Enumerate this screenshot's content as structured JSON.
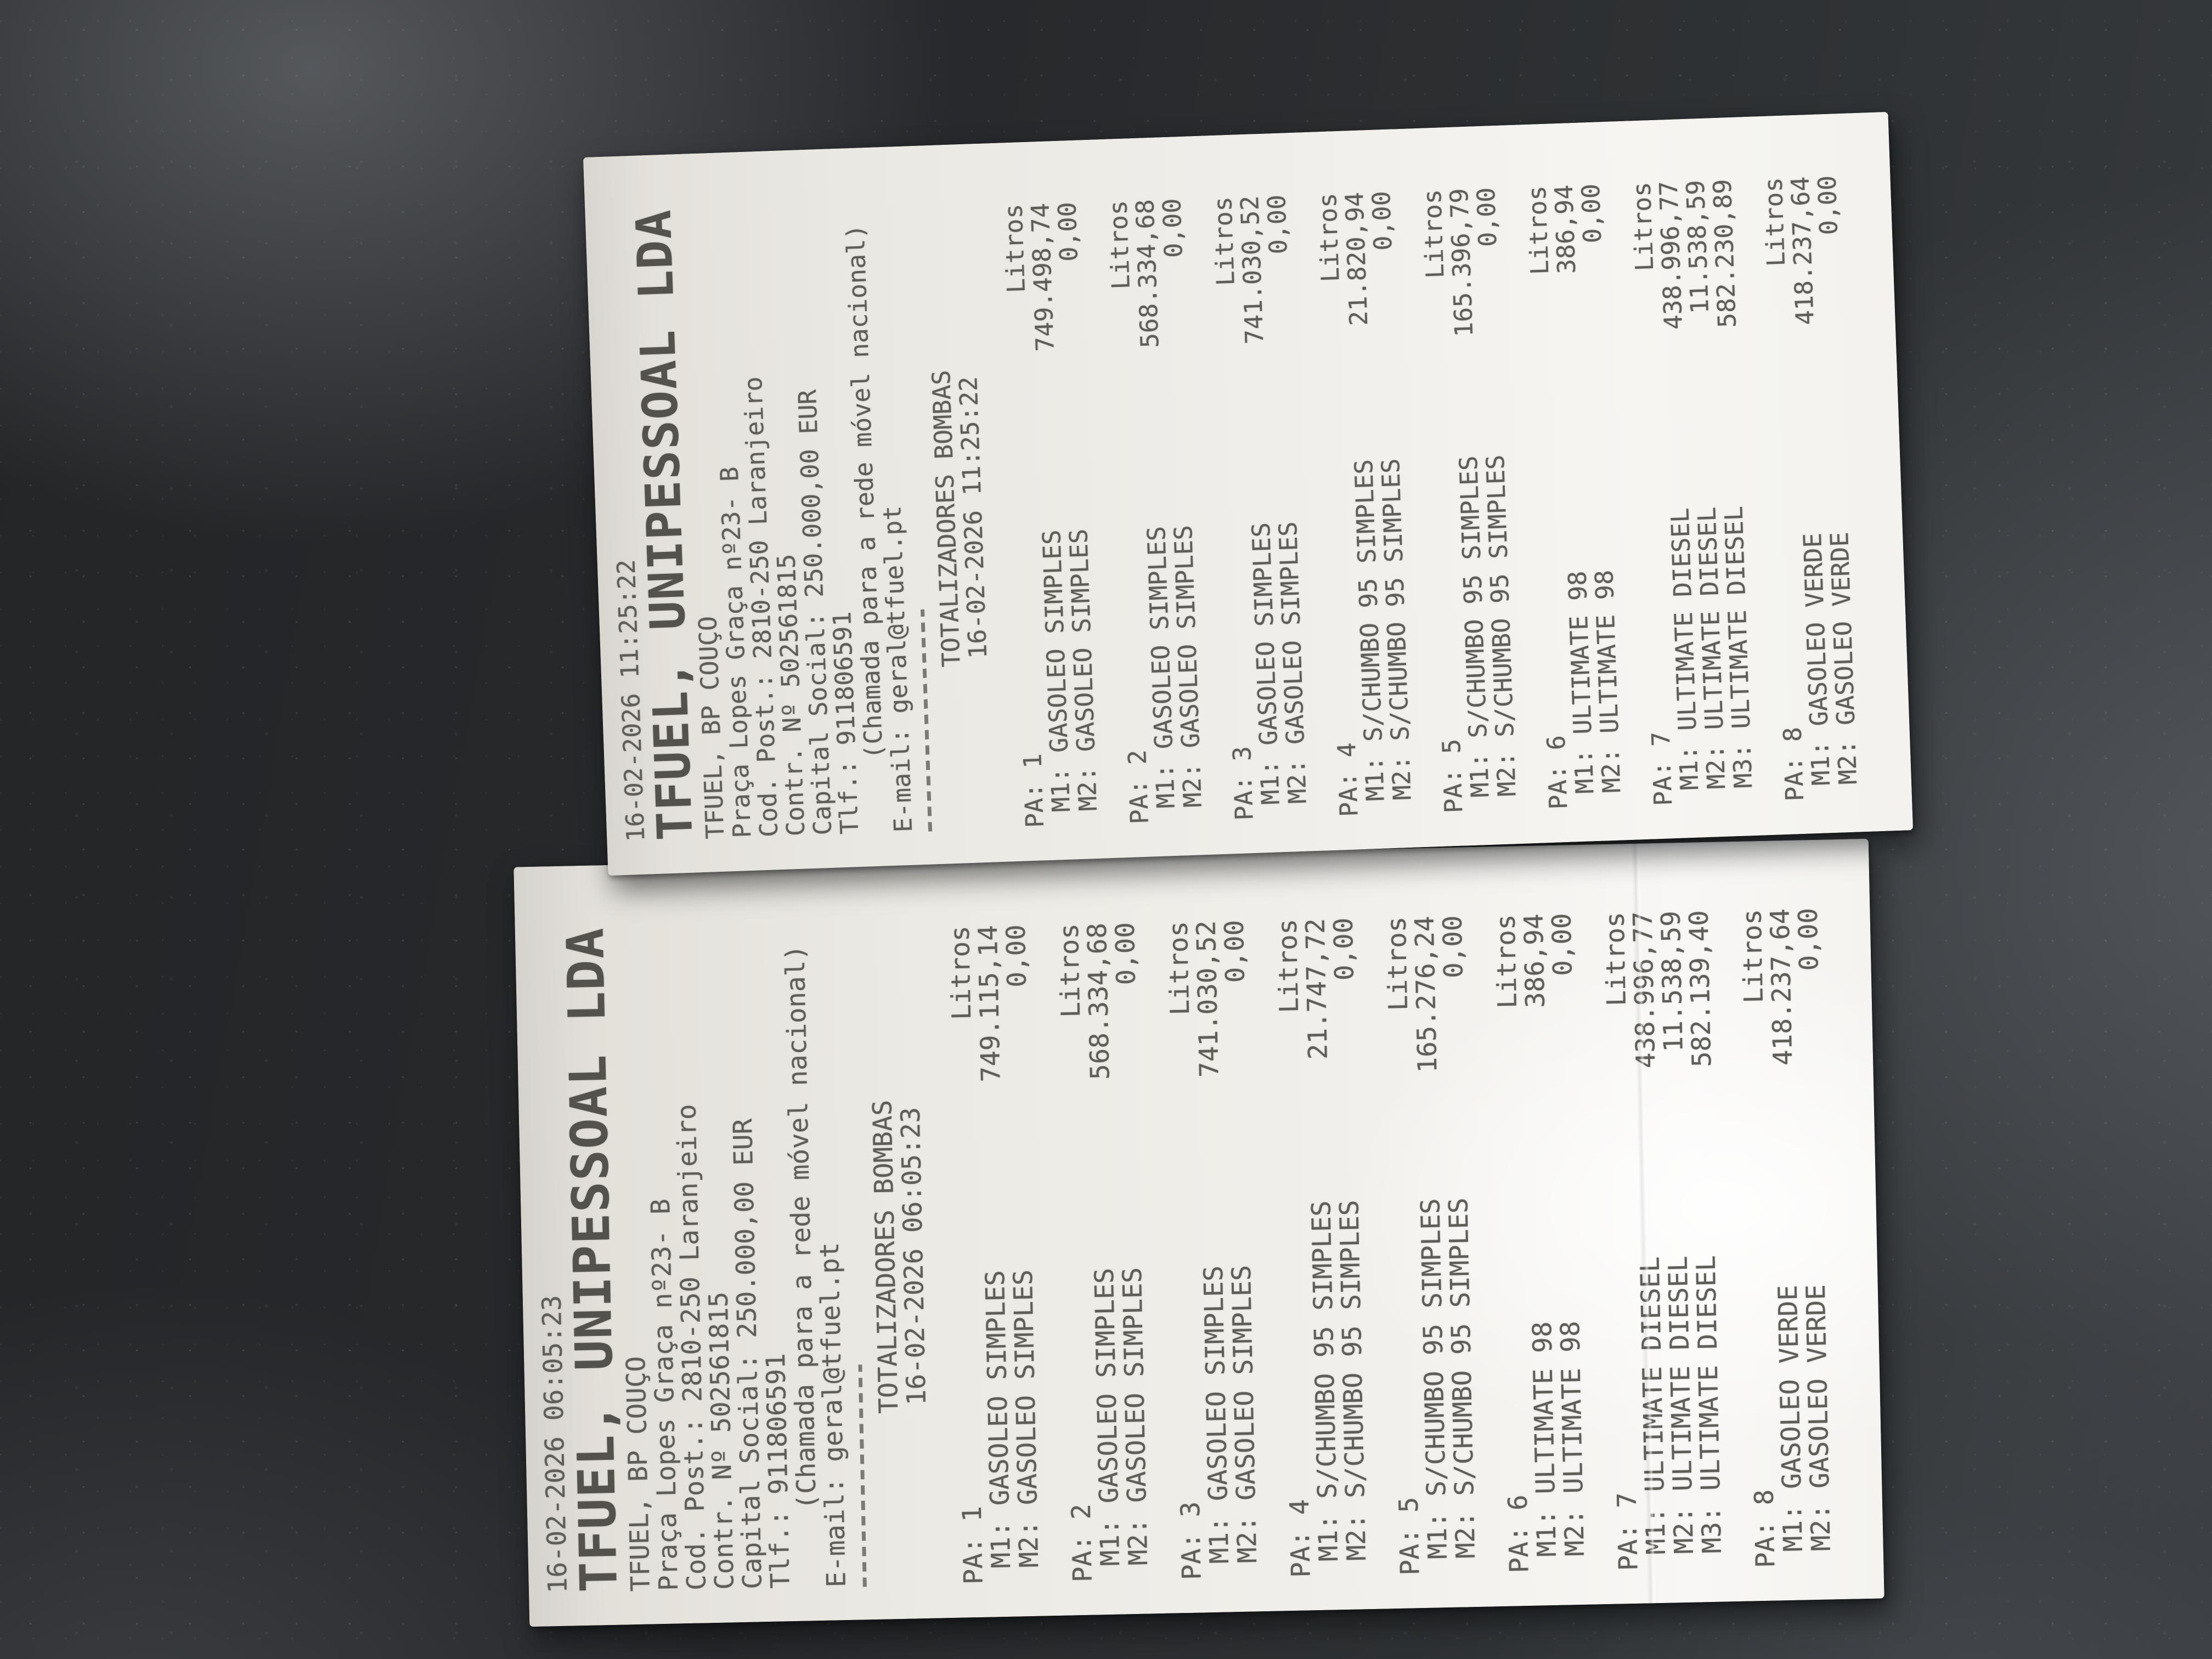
{
  "palette": {
    "countertop_hex": "#2b2d30",
    "paper_hex": "#f0eeea",
    "ink_hex": "#5e5d58"
  },
  "receipts": [
    {
      "printed_at": "16-02-2026 11:25:22",
      "company_title": "TFUEL, UNIPESSOAL LDA",
      "header_lines": [
        "TFUEL, BP COUÇO",
        "Praça Lopes Graça nº23- B",
        "Cod. Post.: 2810-250 Laranjeiro",
        "Contr. Nº 502561815",
        "Capital Social: 250.000,00 EUR",
        "Tlf.: 911806591",
        "     (Chamada para a rede móvel nacional)",
        "E-mail: geral@tfuel.pt"
      ],
      "section": {
        "title": "TOTALIZADORES BOMBAS",
        "datetime": "16-02-2026 11:25:22"
      },
      "unit_label": "Litros",
      "pumps": [
        {
          "label": "PA: 1",
          "meters": [
            {
              "m": "M1:",
              "product": "GASOLEO SIMPLES",
              "value": "749.498,74"
            },
            {
              "m": "M2:",
              "product": "GASOLEO SIMPLES",
              "value": "0,00"
            }
          ]
        },
        {
          "label": "PA: 2",
          "meters": [
            {
              "m": "M1:",
              "product": "GASOLEO SIMPLES",
              "value": "568.334,68"
            },
            {
              "m": "M2:",
              "product": "GASOLEO SIMPLES",
              "value": "0,00"
            }
          ]
        },
        {
          "label": "PA: 3",
          "meters": [
            {
              "m": "M1:",
              "product": "GASOLEO SIMPLES",
              "value": "741.030,52"
            },
            {
              "m": "M2:",
              "product": "GASOLEO SIMPLES",
              "value": "0,00"
            }
          ]
        },
        {
          "label": "PA: 4",
          "meters": [
            {
              "m": "M1:",
              "product": "S/CHUMBO 95 SIMPLES",
              "value": "21.820,94"
            },
            {
              "m": "M2:",
              "product": "S/CHUMBO 95 SIMPLES",
              "value": "0,00"
            }
          ]
        },
        {
          "label": "PA: 5",
          "meters": [
            {
              "m": "M1:",
              "product": "S/CHUMBO 95 SIMPLES",
              "value": "165.396,79"
            },
            {
              "m": "M2:",
              "product": "S/CHUMBO 95 SIMPLES",
              "value": "0,00"
            }
          ]
        },
        {
          "label": "PA: 6",
          "meters": [
            {
              "m": "M1:",
              "product": "ULTIMATE 98",
              "value": "386,94"
            },
            {
              "m": "M2:",
              "product": "ULTIMATE 98",
              "value": "0,00"
            }
          ]
        },
        {
          "label": "PA: 7",
          "meters": [
            {
              "m": "M1:",
              "product": "ULTIMATE DIESEL",
              "value": "438.996,77"
            },
            {
              "m": "M2:",
              "product": "ULTIMATE DIESEL",
              "value": "11.538,59"
            },
            {
              "m": "M3:",
              "product": "ULTIMATE DIESEL",
              "value": "582.230,89"
            }
          ]
        },
        {
          "label": "PA: 8",
          "meters": [
            {
              "m": "M1:",
              "product": "GASOLEO VERDE",
              "value": "418.237,64"
            },
            {
              "m": "M2:",
              "product": "GASOLEO VERDE",
              "value": "0,00"
            }
          ]
        }
      ]
    },
    {
      "printed_at": "16-02-2026 06:05:23",
      "company_title": "TFUEL, UNIPESSOAL LDA",
      "header_lines": [
        "TFUEL, BP COUÇO",
        "Praça Lopes Graça nº23- B",
        "Cod. Post.: 2810-250 Laranjeiro",
        "Contr. Nº 502561815",
        "Capital Social: 250.000,00 EUR",
        "Tlf.: 911806591",
        "     (Chamada para a rede móvel nacional)",
        "E-mail: geral@tfuel.pt"
      ],
      "section": {
        "title": "TOTALIZADORES BOMBAS",
        "datetime": "16-02-2026 06:05:23"
      },
      "unit_label": "Litros",
      "pumps": [
        {
          "label": "PA: 1",
          "meters": [
            {
              "m": "M1:",
              "product": "GASOLEO SIMPLES",
              "value": "749.115,14"
            },
            {
              "m": "M2:",
              "product": "GASOLEO SIMPLES",
              "value": "0,00"
            }
          ]
        },
        {
          "label": "PA: 2",
          "meters": [
            {
              "m": "M1:",
              "product": "GASOLEO SIMPLES",
              "value": "568.334,68"
            },
            {
              "m": "M2:",
              "product": "GASOLEO SIMPLES",
              "value": "0,00"
            }
          ]
        },
        {
          "label": "PA: 3",
          "meters": [
            {
              "m": "M1:",
              "product": "GASOLEO SIMPLES",
              "value": "741.030,52"
            },
            {
              "m": "M2:",
              "product": "GASOLEO SIMPLES",
              "value": "0,00"
            }
          ]
        },
        {
          "label": "PA: 4",
          "meters": [
            {
              "m": "M1:",
              "product": "S/CHUMBO 95 SIMPLES",
              "value": "21.747,72"
            },
            {
              "m": "M2:",
              "product": "S/CHUMBO 95 SIMPLES",
              "value": "0,00"
            }
          ]
        },
        {
          "label": "PA: 5",
          "meters": [
            {
              "m": "M1:",
              "product": "S/CHUMBO 95 SIMPLES",
              "value": "165.276,24"
            },
            {
              "m": "M2:",
              "product": "S/CHUMBO 95 SIMPLES",
              "value": "0,00"
            }
          ]
        },
        {
          "label": "PA: 6",
          "meters": [
            {
              "m": "M1:",
              "product": "ULTIMATE 98",
              "value": "386,94"
            },
            {
              "m": "M2:",
              "product": "ULTIMATE 98",
              "value": "0,00"
            }
          ]
        },
        {
          "label": "PA: 7",
          "meters": [
            {
              "m": "M1:",
              "product": "ULTIMATE DIESEL",
              "value": "438.996,77"
            },
            {
              "m": "M2:",
              "product": "ULTIMATE DIESEL",
              "value": "11.538,59"
            },
            {
              "m": "M3:",
              "product": "ULTIMATE DIESEL",
              "value": "582.139,40"
            }
          ]
        },
        {
          "label": "PA: 8",
          "meters": [
            {
              "m": "M1:",
              "product": "GASOLEO VERDE",
              "value": "418.237,64"
            },
            {
              "m": "M2:",
              "product": "GASOLEO VERDE",
              "value": "0,00"
            }
          ]
        }
      ]
    }
  ]
}
